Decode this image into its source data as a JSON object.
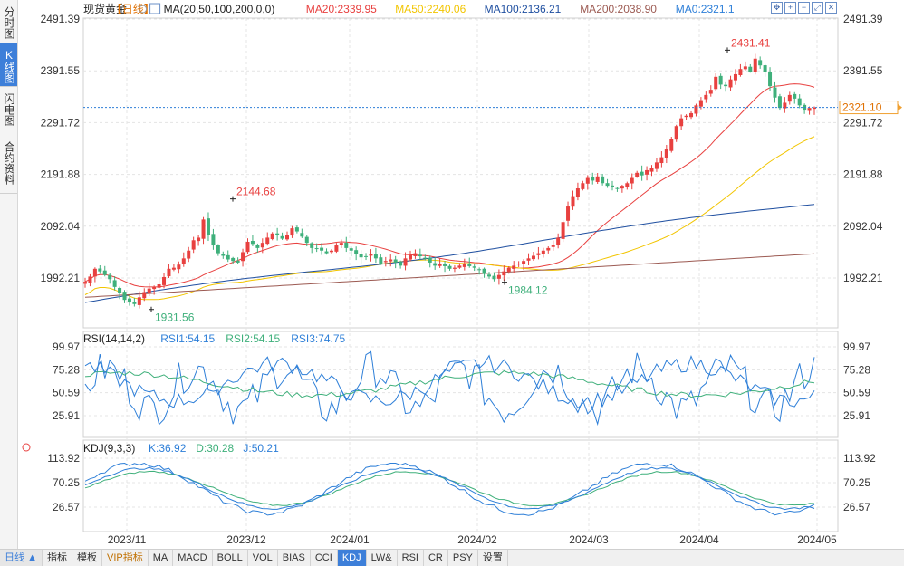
{
  "side_tabs": [
    {
      "label": "分时图",
      "active": false
    },
    {
      "label": "K线图",
      "active": true
    },
    {
      "label": "闪电图",
      "active": false
    },
    {
      "label": "合约资料",
      "active": false
    }
  ],
  "header": {
    "symbol": "现货黄金",
    "period": "【日线】",
    "add_icon": "plus-circle-icon",
    "ma_params": "MA(20,50,100,200,0,0)",
    "ma_items": [
      {
        "label": "MA20:2339.95",
        "color": "#e8403f"
      },
      {
        "label": "MA50:2240.06",
        "color": "#f2c500"
      },
      {
        "label": "MA100:2136.21",
        "color": "#1f4fa0"
      },
      {
        "label": "MA200:2038.90",
        "color": "#9c5a52"
      },
      {
        "label": "MA0:2321.1",
        "color": "#2e7fd8"
      }
    ]
  },
  "toolbar_icons": [
    "move-icon",
    "zoom-in-icon",
    "zoom-out-icon",
    "fit-icon",
    "close-icon"
  ],
  "colors": {
    "up": "#e8403f",
    "down": "#3fb07b",
    "grid": "#e4e4e4",
    "price_line": "#2e7fd8"
  },
  "price_panel": {
    "y_ticks": [
      "2491.39",
      "2391.55",
      "2291.72",
      "2191.88",
      "2092.04",
      "1992.21"
    ],
    "current_price": "2321.10",
    "annotations": [
      {
        "label": "2144.68",
        "value": 2144.68,
        "kind": "high"
      },
      {
        "label": "2431.41",
        "value": 2431.41,
        "kind": "high"
      },
      {
        "label": "1931.56",
        "value": 1931.56,
        "kind": "low"
      },
      {
        "label": "1984.12",
        "value": 1984.12,
        "kind": "low"
      }
    ]
  },
  "rsi_panel": {
    "title": "RSI(14,14,2)",
    "items": [
      {
        "label": "RSI1:54.15",
        "color": "#2e7fd8"
      },
      {
        "label": "RSI2:54.15",
        "color": "#3fb07b"
      },
      {
        "label": "RSI3:74.75",
        "color": "#2e7fd8"
      }
    ],
    "y_ticks": [
      "99.97",
      "75.28",
      "50.59",
      "25.91"
    ]
  },
  "kdj_panel": {
    "title": "KDJ(9,3,3)",
    "icon": "settings-sun-icon",
    "items": [
      {
        "label": "K:36.92",
        "color": "#2e7fd8"
      },
      {
        "label": "D:30.28",
        "color": "#3fb07b"
      },
      {
        "label": "J:50.21",
        "color": "#2e7fd8"
      }
    ],
    "y_ticks": [
      "113.92",
      "70.25",
      "26.57"
    ]
  },
  "x_axis": [
    "2023/11",
    "2023/12",
    "2024/01",
    "2024/02",
    "2024/03",
    "2024/04",
    "2024/05"
  ],
  "bottom_tabs": {
    "first": "日线 ▲",
    "items": [
      {
        "label": "指标",
        "active": false,
        "vip": false
      },
      {
        "label": "模板",
        "active": false,
        "vip": false
      },
      {
        "label": "VIP指标",
        "active": false,
        "vip": true
      },
      {
        "label": "MA",
        "active": false,
        "vip": false
      },
      {
        "label": "MACD",
        "active": false,
        "vip": false
      },
      {
        "label": "BOLL",
        "active": false,
        "vip": false
      },
      {
        "label": "VOL",
        "active": false,
        "vip": false
      },
      {
        "label": "BIAS",
        "active": false,
        "vip": false
      },
      {
        "label": "CCI",
        "active": false,
        "vip": false
      },
      {
        "label": "KDJ",
        "active": true,
        "vip": false
      },
      {
        "label": "LW&",
        "active": false,
        "vip": false
      },
      {
        "label": "RSI",
        "active": false,
        "vip": false
      },
      {
        "label": "CR",
        "active": false,
        "vip": false
      },
      {
        "label": "PSY",
        "active": false,
        "vip": false
      },
      {
        "label": "设置",
        "active": false,
        "vip": false
      }
    ]
  },
  "chart_data": {
    "type": "candlestick",
    "price_ticks": [
      2491.39,
      2391.55,
      2291.72,
      2191.88,
      2092.04,
      1992.21
    ],
    "current_price": 2321.1,
    "x_labels": [
      "2023/11",
      "2023/12",
      "2024/01",
      "2024/02",
      "2024/03",
      "2024/04",
      "2024/05"
    ],
    "close": [
      1985,
      1995,
      2010,
      2005,
      1998,
      1990,
      1975,
      1963,
      1950,
      1945,
      1942,
      1955,
      1965,
      1972,
      1975,
      1980,
      1994,
      2010,
      2012,
      2018,
      2030,
      2045,
      2065,
      2070,
      2105,
      2075,
      2055,
      2040,
      2035,
      2028,
      2025,
      2022,
      2042,
      2062,
      2058,
      2050,
      2060,
      2070,
      2078,
      2075,
      2068,
      2075,
      2088,
      2082,
      2072,
      2060,
      2050,
      2048,
      2045,
      2040,
      2045,
      2055,
      2060,
      2050,
      2045,
      2038,
      2032,
      2034,
      2038,
      2030,
      2020,
      2025,
      2028,
      2022,
      2016,
      2030,
      2036,
      2040,
      2034,
      2030,
      2022,
      2016,
      2020,
      2015,
      2010,
      2012,
      2016,
      2020,
      2015,
      2012,
      2008,
      2000,
      1995,
      1990,
      1998,
      2005,
      2012,
      2016,
      2020,
      2025,
      2030,
      2035,
      2040,
      2045,
      2050,
      2055,
      2070,
      2100,
      2130,
      2150,
      2165,
      2175,
      2185,
      2180,
      2188,
      2175,
      2170,
      2168,
      2165,
      2170,
      2175,
      2185,
      2195,
      2190,
      2200,
      2205,
      2215,
      2225,
      2240,
      2260,
      2285,
      2300,
      2305,
      2310,
      2325,
      2335,
      2345,
      2355,
      2380,
      2365,
      2362,
      2375,
      2385,
      2395,
      2400,
      2390,
      2415,
      2402,
      2390,
      2362,
      2340,
      2320,
      2330,
      2345,
      2338,
      2325,
      2315,
      2320,
      2321
    ],
    "ma20_end": 2339.95,
    "ma50_end": 2240.06,
    "ma100_end": 2136.21,
    "ma200_end": 2038.9,
    "rsi_ticks": [
      99.97,
      75.28,
      50.59,
      25.91
    ],
    "kdj_ticks": [
      113.92,
      70.25,
      26.57
    ],
    "rsi_end": {
      "rsi1": 54.15,
      "rsi2": 54.15,
      "rsi3": 74.75
    },
    "kdj_end": {
      "k": 36.92,
      "d": 30.28,
      "j": 50.21
    }
  }
}
